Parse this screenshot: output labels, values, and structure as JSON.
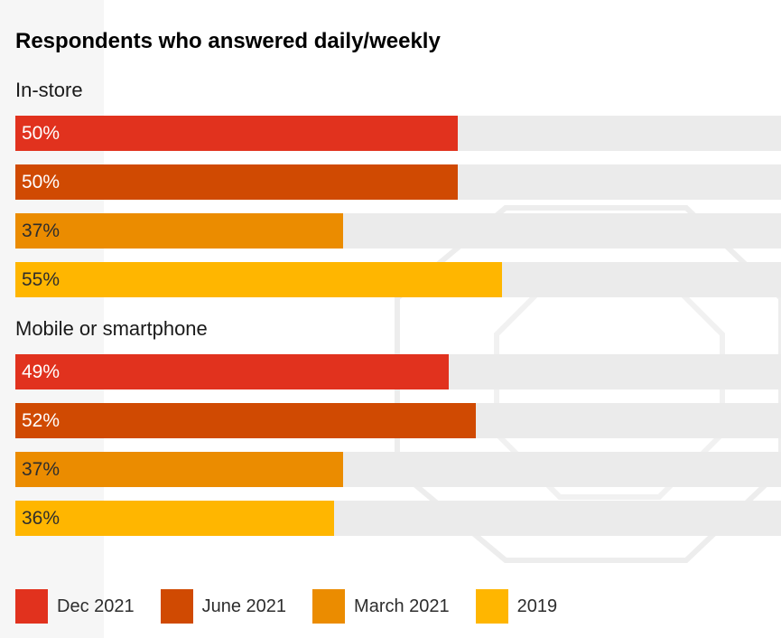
{
  "chart_data": {
    "type": "bar",
    "orientation": "horizontal",
    "title": "Respondents who answered daily/weekly",
    "xlim": [
      0,
      86.5
    ],
    "grid": false,
    "legend_position": "bottom",
    "series": [
      {
        "name": "Dec 2021",
        "color": "#e1321e"
      },
      {
        "name": "June 2021",
        "color": "#d04a02"
      },
      {
        "name": "March 2021",
        "color": "#eb8c00"
      },
      {
        "name": "2019",
        "color": "#ffb600"
      }
    ],
    "groups": [
      {
        "label": "In-store",
        "values": [
          50,
          50,
          37,
          55
        ],
        "labels": [
          "50%",
          "50%",
          "37%",
          "55%"
        ]
      },
      {
        "label": "Mobile or smartphone",
        "values": [
          49,
          52,
          37,
          36
        ],
        "labels": [
          "49%",
          "52%",
          "37%",
          "36%"
        ]
      }
    ]
  }
}
